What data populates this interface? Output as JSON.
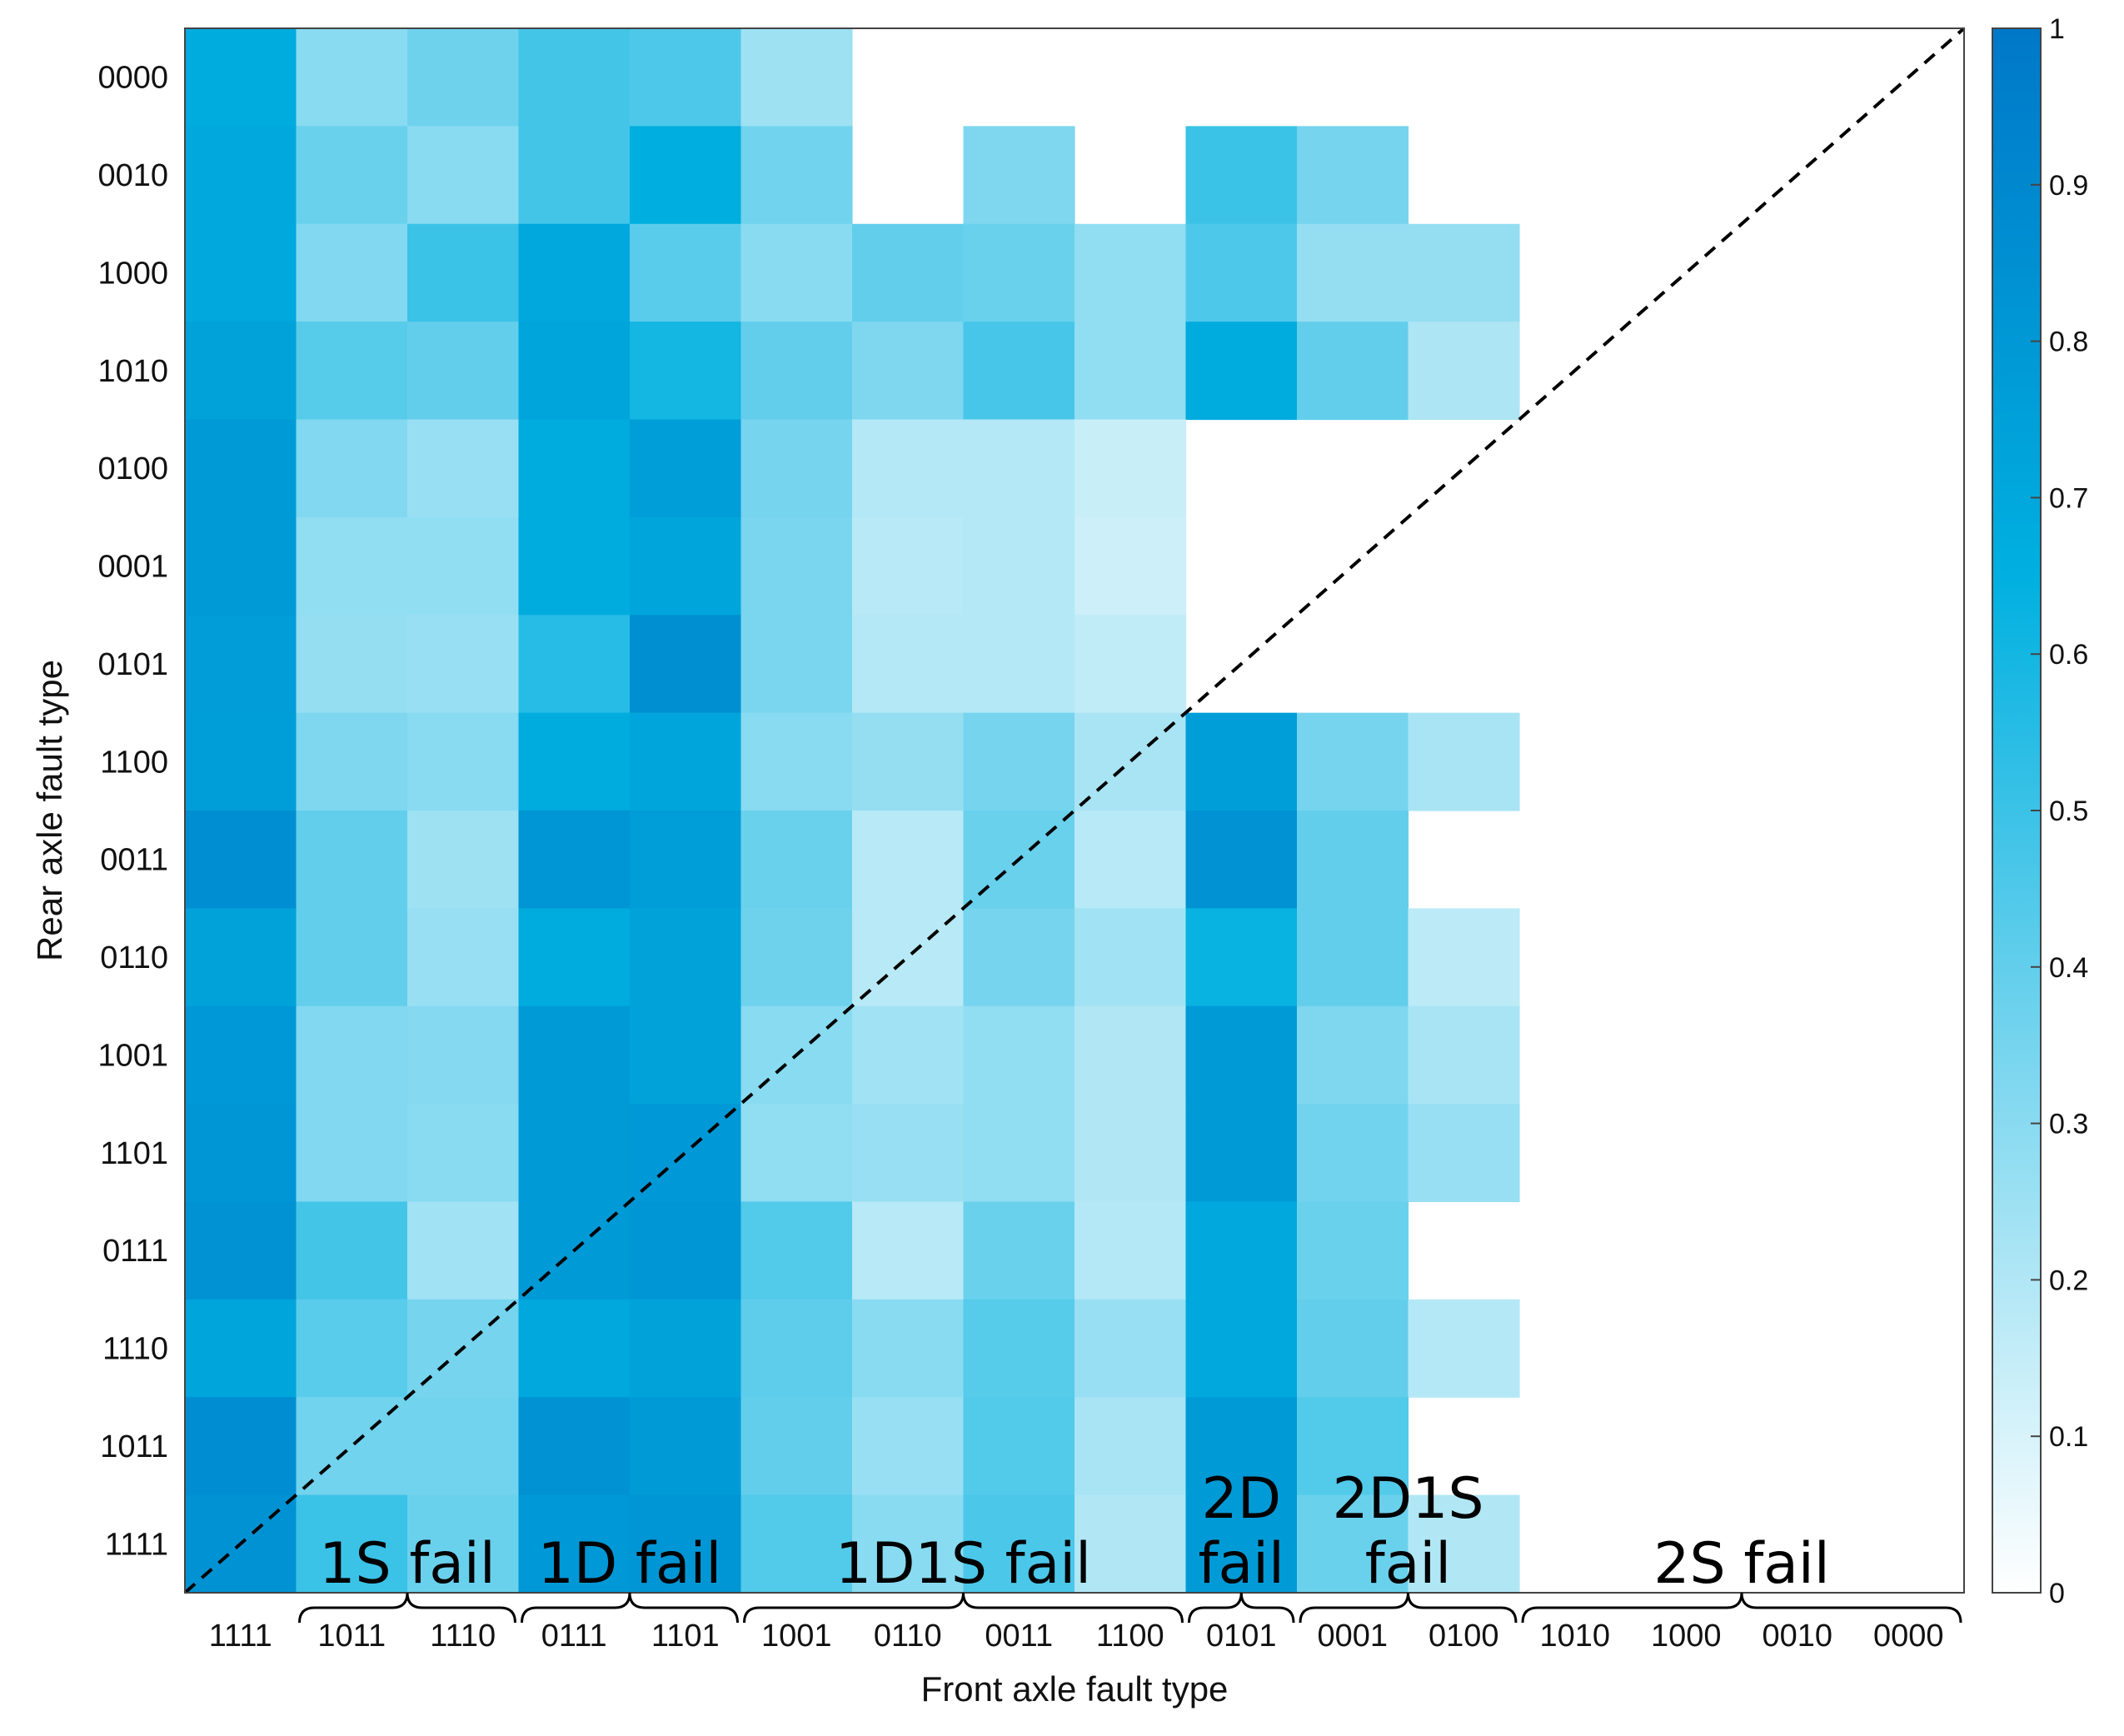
{
  "chart_data": {
    "type": "heatmap",
    "xlabel": "Front axle fault type",
    "ylabel": "Rear axle fault type",
    "x_categories": [
      "1111",
      "1011",
      "1110",
      "0111",
      "1101",
      "1001",
      "0110",
      "0011",
      "1100",
      "0101",
      "0001",
      "0100",
      "1010",
      "1000",
      "0010",
      "0000"
    ],
    "y_categories": [
      "0000",
      "0010",
      "1000",
      "1010",
      "0100",
      "0001",
      "0101",
      "1100",
      "0011",
      "0110",
      "1001",
      "1101",
      "0111",
      "1110",
      "1011",
      "1111"
    ],
    "values": [
      [
        0.68,
        0.3,
        0.37,
        0.48,
        0.45,
        0.25,
        null,
        null,
        null,
        null,
        null,
        null,
        null,
        null,
        null,
        null
      ],
      [
        0.7,
        0.38,
        0.3,
        0.48,
        0.66,
        0.36,
        null,
        0.33,
        null,
        0.5,
        0.35,
        null,
        null,
        null,
        null,
        null
      ],
      [
        0.7,
        0.32,
        0.5,
        0.7,
        0.42,
        0.3,
        0.4,
        0.38,
        0.28,
        0.45,
        0.27,
        0.27,
        null,
        null,
        null,
        null
      ],
      [
        0.74,
        0.43,
        0.4,
        0.72,
        0.6,
        0.4,
        0.33,
        0.47,
        0.28,
        0.68,
        0.4,
        0.21,
        null,
        null,
        null,
        null
      ],
      [
        0.78,
        0.32,
        0.26,
        0.68,
        0.76,
        0.35,
        0.19,
        0.19,
        0.14,
        null,
        null,
        null,
        null,
        null,
        null,
        null
      ],
      [
        0.79,
        0.28,
        0.28,
        0.68,
        0.72,
        0.34,
        0.18,
        0.19,
        0.13,
        null,
        null,
        null,
        null,
        null,
        null,
        null
      ],
      [
        0.77,
        0.27,
        0.26,
        0.55,
        0.85,
        0.34,
        0.19,
        0.19,
        0.16,
        null,
        null,
        null,
        null,
        null,
        null,
        null
      ],
      [
        0.76,
        0.33,
        0.3,
        0.68,
        0.72,
        0.3,
        0.27,
        0.35,
        0.22,
        0.76,
        0.35,
        0.22,
        null,
        null,
        null,
        null
      ],
      [
        0.86,
        0.4,
        0.25,
        0.82,
        0.76,
        0.38,
        0.18,
        0.38,
        0.18,
        0.84,
        0.4,
        null,
        null,
        null,
        null,
        null
      ],
      [
        0.74,
        0.4,
        0.26,
        0.68,
        0.74,
        0.37,
        0.18,
        0.35,
        0.24,
        0.63,
        0.4,
        0.17,
        null,
        null,
        null,
        null
      ],
      [
        0.8,
        0.32,
        0.31,
        0.79,
        0.74,
        0.3,
        0.24,
        0.28,
        0.2,
        0.79,
        0.33,
        0.22,
        null,
        null,
        null,
        null
      ],
      [
        0.81,
        0.32,
        0.3,
        0.78,
        0.8,
        0.28,
        0.26,
        0.28,
        0.2,
        0.78,
        0.36,
        0.26,
        null,
        null,
        null,
        null
      ],
      [
        0.84,
        0.48,
        0.24,
        0.79,
        0.81,
        0.44,
        0.18,
        0.38,
        0.19,
        0.7,
        0.38,
        null,
        null,
        null,
        null,
        null
      ],
      [
        0.72,
        0.42,
        0.35,
        0.7,
        0.74,
        0.41,
        0.3,
        0.43,
        0.26,
        0.7,
        0.4,
        0.19,
        null,
        null,
        null,
        null
      ],
      [
        0.87,
        0.36,
        0.36,
        0.84,
        0.78,
        0.4,
        0.26,
        0.44,
        0.22,
        0.79,
        0.44,
        null,
        null,
        null,
        null,
        null
      ],
      [
        0.84,
        0.5,
        0.38,
        0.8,
        0.82,
        0.44,
        0.3,
        0.46,
        0.2,
        0.78,
        0.38,
        0.2,
        null,
        null,
        null,
        null
      ]
    ],
    "color_range": [
      0,
      1
    ],
    "colorbar_ticks": [
      "0",
      "0.1",
      "0.2",
      "0.3",
      "0.4",
      "0.5",
      "0.6",
      "0.7",
      "0.8",
      "0.9",
      "1"
    ],
    "colorscale": [
      "#ffffff",
      "#00b0e0",
      "#0078c8"
    ],
    "diagonal_line": "dashed",
    "annotations": [
      {
        "text": "1S fail",
        "x_span": [
          1,
          2
        ]
      },
      {
        "text": "1D fail",
        "x_span": [
          3,
          4
        ]
      },
      {
        "text": "1D1S fail",
        "x_span": [
          5,
          8
        ]
      },
      {
        "text": "2D fail",
        "x_span": [
          9,
          9
        ]
      },
      {
        "text": "2D1S fail",
        "x_span": [
          10,
          11
        ]
      },
      {
        "text": "2S fail",
        "x_span": [
          12,
          15
        ]
      }
    ]
  }
}
